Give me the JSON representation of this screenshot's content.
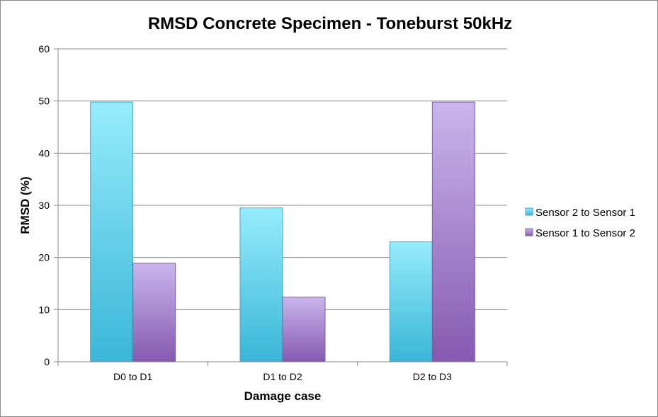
{
  "chart_data": {
    "type": "bar",
    "title": "RMSD Concrete Specimen - Toneburst 50kHz",
    "xlabel": "Damage case",
    "ylabel": "RMSD (%)",
    "categories": [
      "D0 to D1",
      "D1 to D2",
      "D2 to D3"
    ],
    "series": [
      {
        "name": "Sensor 2 to Sensor 1",
        "values": [
          49.8,
          29.5,
          23.0
        ],
        "color_top": "#96ecfb",
        "color_bottom": "#3ab6d8",
        "stroke": "#41a9c6"
      },
      {
        "name": "Sensor 1 to Sensor 2",
        "values": [
          18.9,
          12.4,
          49.8
        ],
        "color_top": "#c9b6ec",
        "color_bottom": "#8659b0",
        "stroke": "#7e5ca6"
      }
    ],
    "ylim": [
      0,
      60
    ],
    "yticks": [
      0,
      10,
      20,
      30,
      40,
      50,
      60
    ],
    "grid": true,
    "legend": "right",
    "gridline_color": "#888888",
    "axis_color": "#888888"
  }
}
